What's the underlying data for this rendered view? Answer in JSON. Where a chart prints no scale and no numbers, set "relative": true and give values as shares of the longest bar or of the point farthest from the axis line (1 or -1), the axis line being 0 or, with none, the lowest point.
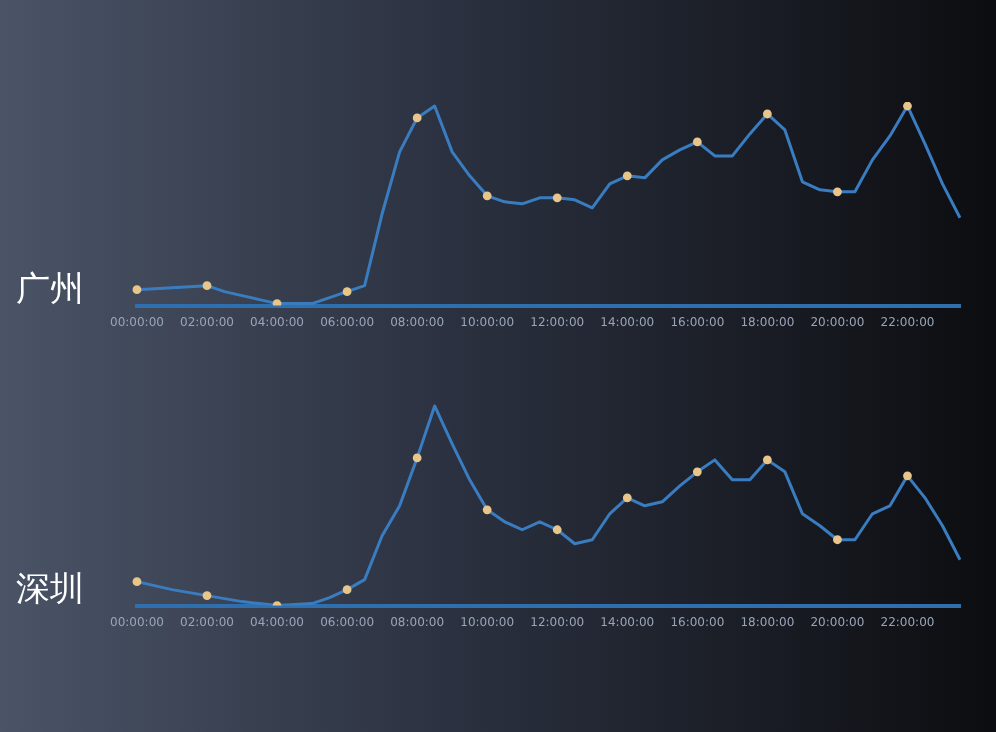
{
  "chart_data": [
    {
      "type": "line",
      "title": "广州",
      "relative": true,
      "grid": false,
      "legend": false,
      "categories": [
        "00:00:00",
        null,
        null,
        null,
        "02:00:00",
        null,
        null,
        null,
        "04:00:00",
        null,
        null,
        null,
        "06:00:00",
        null,
        null,
        null,
        "08:00:00",
        null,
        null,
        null,
        "10:00:00",
        null,
        null,
        null,
        "12:00:00",
        null,
        null,
        null,
        "14:00:00",
        null,
        null,
        null,
        "16:00:00",
        null,
        null,
        null,
        "18:00:00",
        null,
        null,
        null,
        "20:00:00",
        null,
        null,
        null,
        "22:00:00",
        null,
        null,
        null
      ],
      "series": [
        {
          "color": "#3a7cc0",
          "marker": "none",
          "values": [
            0.08,
            0.085,
            0.09,
            0.095,
            0.1,
            0.07,
            0.05,
            0.03,
            0.01,
            0.01,
            0.01,
            0.04,
            0.07,
            0.1,
            0.46,
            0.77,
            0.94,
            1.0,
            0.77,
            0.65,
            0.55,
            0.52,
            0.51,
            0.54,
            0.54,
            0.53,
            0.49,
            0.61,
            0.65,
            0.64,
            0.73,
            0.78,
            0.82,
            0.75,
            0.75,
            0.86,
            0.96,
            0.88,
            0.62,
            0.58,
            0.57,
            0.57,
            0.73,
            0.85,
            1.0,
            0.81,
            0.61,
            0.44
          ]
        },
        {
          "type": "scatter",
          "color": "#e8c58a",
          "marker": "circle",
          "x": [
            "00:00:00",
            "02:00:00",
            "04:00:00",
            "06:00:00",
            "08:00:00",
            "10:00:00",
            "12:00:00",
            "14:00:00",
            "16:00:00",
            "18:00:00",
            "20:00:00",
            "22:00:00"
          ],
          "values": [
            0.08,
            0.1,
            0.01,
            0.07,
            0.94,
            0.55,
            0.54,
            0.65,
            0.82,
            0.96,
            0.57,
            1.0
          ]
        }
      ]
    },
    {
      "type": "line",
      "title": "深圳",
      "relative": true,
      "grid": false,
      "legend": false,
      "categories": [
        "00:00:00",
        null,
        null,
        null,
        "02:00:00",
        null,
        null,
        null,
        "04:00:00",
        null,
        null,
        null,
        "06:00:00",
        null,
        null,
        null,
        "08:00:00",
        null,
        null,
        null,
        "10:00:00",
        null,
        null,
        null,
        "12:00:00",
        null,
        null,
        null,
        "14:00:00",
        null,
        null,
        null,
        "16:00:00",
        null,
        null,
        null,
        "18:00:00",
        null,
        null,
        null,
        "20:00:00",
        null,
        null,
        null,
        "22:00:00",
        null,
        null,
        null
      ],
      "series": [
        {
          "color": "#3a7cc0",
          "marker": "none",
          "values": [
            0.12,
            0.1,
            0.08,
            0.065,
            0.05,
            0.035,
            0.02,
            0.01,
            0.0,
            0.005,
            0.01,
            0.04,
            0.08,
            0.13,
            0.35,
            0.5,
            0.74,
            1.0,
            0.81,
            0.63,
            0.48,
            0.42,
            0.38,
            0.42,
            0.38,
            0.31,
            0.33,
            0.46,
            0.54,
            0.5,
            0.52,
            0.6,
            0.67,
            0.73,
            0.63,
            0.63,
            0.73,
            0.67,
            0.46,
            0.4,
            0.33,
            0.33,
            0.46,
            0.5,
            0.65,
            0.54,
            0.4,
            0.23
          ]
        },
        {
          "type": "scatter",
          "color": "#e8c58a",
          "marker": "circle",
          "x": [
            "00:00:00",
            "02:00:00",
            "04:00:00",
            "06:00:00",
            "08:00:00",
            "10:00:00",
            "12:00:00",
            "14:00:00",
            "16:00:00",
            "18:00:00",
            "20:00:00",
            "22:00:00"
          ],
          "values": [
            0.12,
            0.05,
            0.0,
            0.08,
            0.74,
            0.48,
            0.38,
            0.54,
            0.67,
            0.73,
            0.33,
            0.65
          ]
        }
      ]
    }
  ]
}
